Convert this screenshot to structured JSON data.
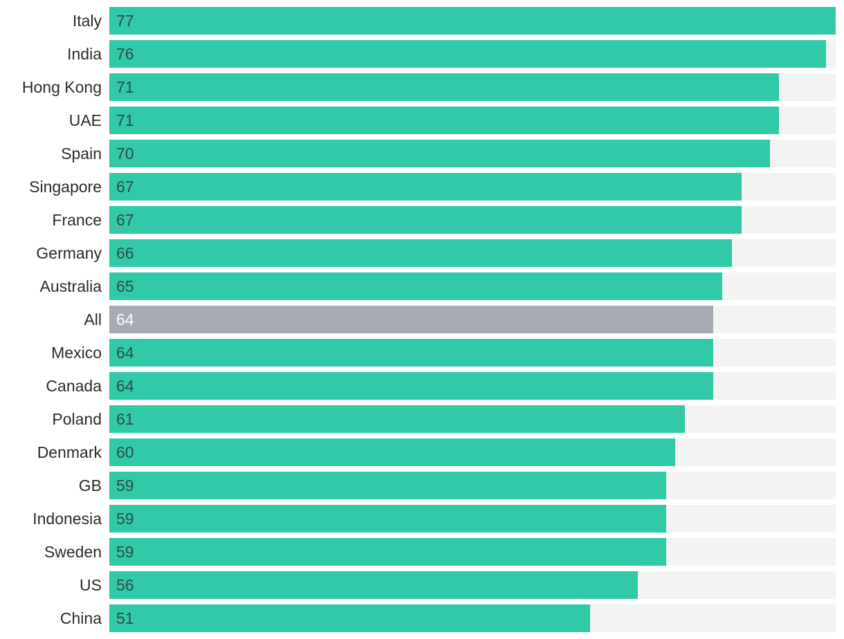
{
  "chart_data": {
    "type": "bar",
    "orientation": "horizontal",
    "categories": [
      "Italy",
      "India",
      "Hong Kong",
      "UAE",
      "Spain",
      "Singapore",
      "France",
      "Germany",
      "Australia",
      "All",
      "Mexico",
      "Canada",
      "Poland",
      "Denmark",
      "GB",
      "Indonesia",
      "Sweden",
      "US",
      "China"
    ],
    "values": [
      77,
      76,
      71,
      71,
      70,
      67,
      67,
      66,
      65,
      64,
      64,
      64,
      61,
      60,
      59,
      59,
      59,
      56,
      51
    ],
    "value_labels": [
      "77",
      "76",
      "71",
      "71",
      "70",
      "67",
      "67",
      "66",
      "65",
      "64",
      "64",
      "64",
      "61",
      "60",
      "59",
      "59",
      "59",
      "56",
      "51"
    ],
    "highlight_category": "All",
    "xlim": [
      0,
      77
    ],
    "grid": false,
    "legend": "none",
    "colors": {
      "bar": "#31c9a8",
      "highlight_bar": "#a5aab4",
      "track": "#f3f3f3",
      "label_on_bar": "#2c4e47",
      "label_on_highlight": "#ffffff",
      "category_text": "#2b2b2b"
    }
  }
}
